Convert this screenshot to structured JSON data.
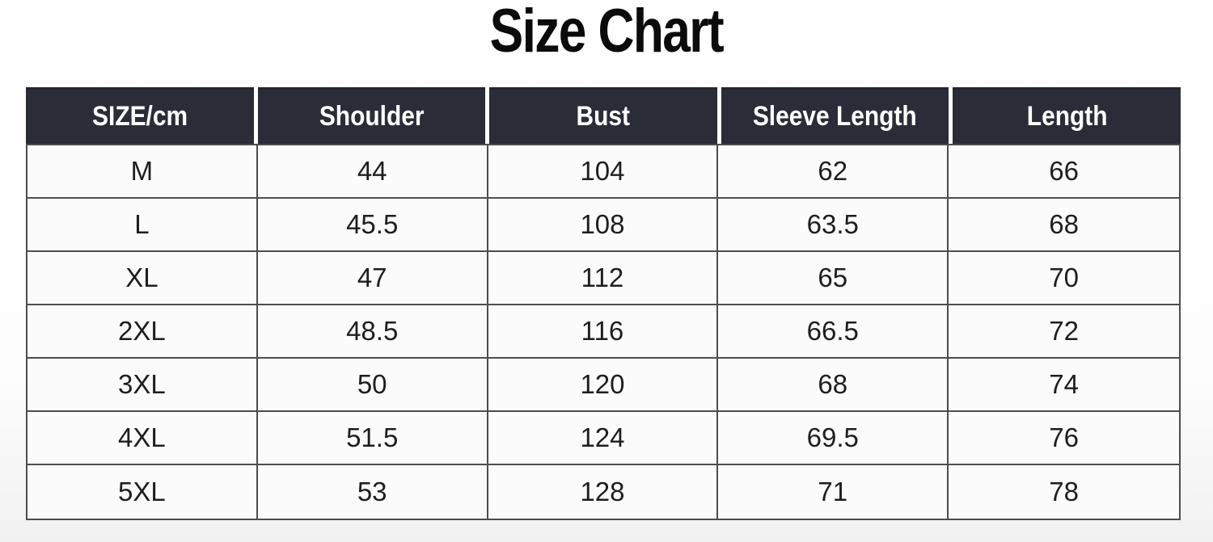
{
  "page": {
    "title": "Size Chart"
  },
  "colors": {
    "header_bg": "#2a2c38",
    "header_text": "#ffffff",
    "body_text": "#1e1e1e",
    "grid_border": "#4d4d4d",
    "title_text": "#0b0b0b",
    "cell_bg": "#fbfbfb"
  },
  "table": {
    "headers": [
      "SIZE/cm",
      "Shoulder",
      "Bust",
      "Sleeve Length",
      "Length"
    ],
    "rows": [
      {
        "cells": [
          "M",
          "44",
          "104",
          "62",
          "66"
        ]
      },
      {
        "cells": [
          "L",
          "45.5",
          "108",
          "63.5",
          "68"
        ]
      },
      {
        "cells": [
          "XL",
          "47",
          "112",
          "65",
          "70"
        ]
      },
      {
        "cells": [
          "2XL",
          "48.5",
          "116",
          "66.5",
          "72"
        ]
      },
      {
        "cells": [
          "3XL",
          "50",
          "120",
          "68",
          "74"
        ]
      },
      {
        "cells": [
          "4XL",
          "51.5",
          "124",
          "69.5",
          "76"
        ]
      },
      {
        "cells": [
          "5XL",
          "53",
          "128",
          "71",
          "78"
        ]
      }
    ]
  },
  "chart_data": {
    "type": "table",
    "title": "Size Chart",
    "units": "cm",
    "columns": [
      "SIZE/cm",
      "Shoulder",
      "Bust",
      "Sleeve Length",
      "Length"
    ],
    "rows": [
      [
        "M",
        44,
        104,
        62,
        66
      ],
      [
        "L",
        45.5,
        108,
        63.5,
        68
      ],
      [
        "XL",
        47,
        112,
        65,
        70
      ],
      [
        "2XL",
        48.5,
        116,
        66.5,
        72
      ],
      [
        "3XL",
        50,
        120,
        68,
        74
      ],
      [
        "4XL",
        51.5,
        124,
        69.5,
        76
      ],
      [
        "5XL",
        53,
        128,
        71,
        78
      ]
    ]
  }
}
